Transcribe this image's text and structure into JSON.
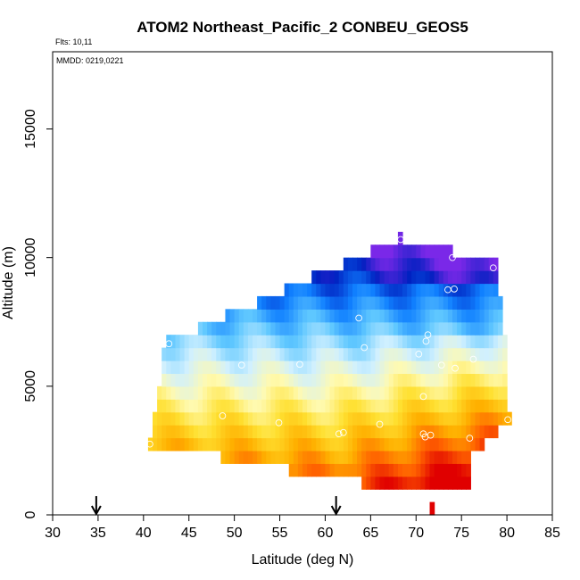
{
  "chart_data": {
    "type": "heatmap",
    "title": "ATOM2 Northeast_Pacific_2 CONBEU_GEOS5",
    "annotations": {
      "flights": "Flts: 10,11",
      "mmdd": "MMDD: 0219,0221"
    },
    "xlabel": "Latitude (deg N)",
    "ylabel": "Altitude (m)",
    "xlim": [
      30,
      85
    ],
    "ylim": [
      0,
      18000
    ],
    "x_ticks": [
      30,
      35,
      40,
      45,
      50,
      55,
      60,
      65,
      70,
      75,
      80,
      85
    ],
    "x_tick_labels": [
      "30",
      "35",
      "40",
      "45",
      "50",
      "55",
      "60",
      "65",
      "70",
      "75",
      "80",
      "85"
    ],
    "y_ticks": [
      0,
      5000,
      10000,
      15000
    ],
    "y_tick_labels": [
      "0",
      "5000",
      "10000",
      "15000"
    ],
    "grid": false,
    "colorscale": [
      "#e00000",
      "#ff6000",
      "#ffb000",
      "#ffe030",
      "#fffab0",
      "#d0f0ff",
      "#60c8ff",
      "#1080ff",
      "#0020c0",
      "#7a28e8"
    ],
    "color_meaning": "low altitude warm (red/orange), high altitude cool (blue/purple)",
    "rows": [
      {
        "y0": 0,
        "y1": 500,
        "x0": 71.5,
        "x1": 72
      },
      {
        "y0": 1000,
        "y1": 1500,
        "x0": 64,
        "x1": 76
      },
      {
        "y0": 1500,
        "y1": 2000,
        "x0": 56,
        "x1": 76
      },
      {
        "y0": 2000,
        "y1": 2500,
        "x0": 48.5,
        "x1": 76
      },
      {
        "y0": 2500,
        "y1": 3000,
        "x0": 40.5,
        "x1": 77.5
      },
      {
        "y0": 3000,
        "y1": 3500,
        "x0": 41,
        "x1": 79
      },
      {
        "y0": 3500,
        "y1": 4000,
        "x0": 41,
        "x1": 80.5
      },
      {
        "y0": 4000,
        "y1": 4500,
        "x0": 41.5,
        "x1": 80
      },
      {
        "y0": 4500,
        "y1": 5000,
        "x0": 41.5,
        "x1": 80
      },
      {
        "y0": 5000,
        "y1": 5500,
        "x0": 42,
        "x1": 80
      },
      {
        "y0": 5500,
        "y1": 6000,
        "x0": 42,
        "x1": 80
      },
      {
        "y0": 6000,
        "y1": 6500,
        "x0": 42,
        "x1": 80
      },
      {
        "y0": 6500,
        "y1": 7000,
        "x0": 42.5,
        "x1": 80
      },
      {
        "y0": 7000,
        "y1": 7500,
        "x0": 46,
        "x1": 79.5
      },
      {
        "y0": 7500,
        "y1": 8000,
        "x0": 49,
        "x1": 79.5
      },
      {
        "y0": 8000,
        "y1": 8500,
        "x0": 52.5,
        "x1": 79.5
      },
      {
        "y0": 8500,
        "y1": 9000,
        "x0": 55.5,
        "x1": 79
      },
      {
        "y0": 9000,
        "y1": 9500,
        "x0": 58.5,
        "x1": 79
      },
      {
        "y0": 9500,
        "y1": 10000,
        "x0": 62,
        "x1": 79
      },
      {
        "y0": 10000,
        "y1": 10500,
        "x0": 65,
        "x1": 74
      },
      {
        "y0": 10500,
        "y1": 11000,
        "x0": 68,
        "x1": 68.5
      }
    ],
    "observation_points": [
      {
        "lat": 68.3,
        "alt": 10700
      },
      {
        "lat": 74,
        "alt": 10000
      },
      {
        "lat": 78.5,
        "alt": 9600
      },
      {
        "lat": 73.5,
        "alt": 8750
      },
      {
        "lat": 74.2,
        "alt": 8780
      },
      {
        "lat": 63.7,
        "alt": 7650
      },
      {
        "lat": 71.3,
        "alt": 7000
      },
      {
        "lat": 71.1,
        "alt": 6750
      },
      {
        "lat": 42.8,
        "alt": 6650
      },
      {
        "lat": 64.3,
        "alt": 6500
      },
      {
        "lat": 70.3,
        "alt": 6250
      },
      {
        "lat": 76.3,
        "alt": 6050
      },
      {
        "lat": 57.2,
        "alt": 5850
      },
      {
        "lat": 50.8,
        "alt": 5820
      },
      {
        "lat": 72.8,
        "alt": 5820
      },
      {
        "lat": 74.3,
        "alt": 5700
      },
      {
        "lat": 70.8,
        "alt": 4600
      },
      {
        "lat": 48.7,
        "alt": 3850
      },
      {
        "lat": 80.1,
        "alt": 3700
      },
      {
        "lat": 54.9,
        "alt": 3580
      },
      {
        "lat": 66,
        "alt": 3520
      },
      {
        "lat": 62,
        "alt": 3200
      },
      {
        "lat": 61.5,
        "alt": 3150
      },
      {
        "lat": 70.8,
        "alt": 3150
      },
      {
        "lat": 71.6,
        "alt": 3100
      },
      {
        "lat": 71,
        "alt": 3030
      },
      {
        "lat": 75.9,
        "alt": 2980
      },
      {
        "lat": 40.7,
        "alt": 2750
      }
    ],
    "flight_markers": [
      {
        "lat": 34.8,
        "label": "arrow"
      },
      {
        "lat": 61.2,
        "label": "arrow"
      }
    ]
  }
}
